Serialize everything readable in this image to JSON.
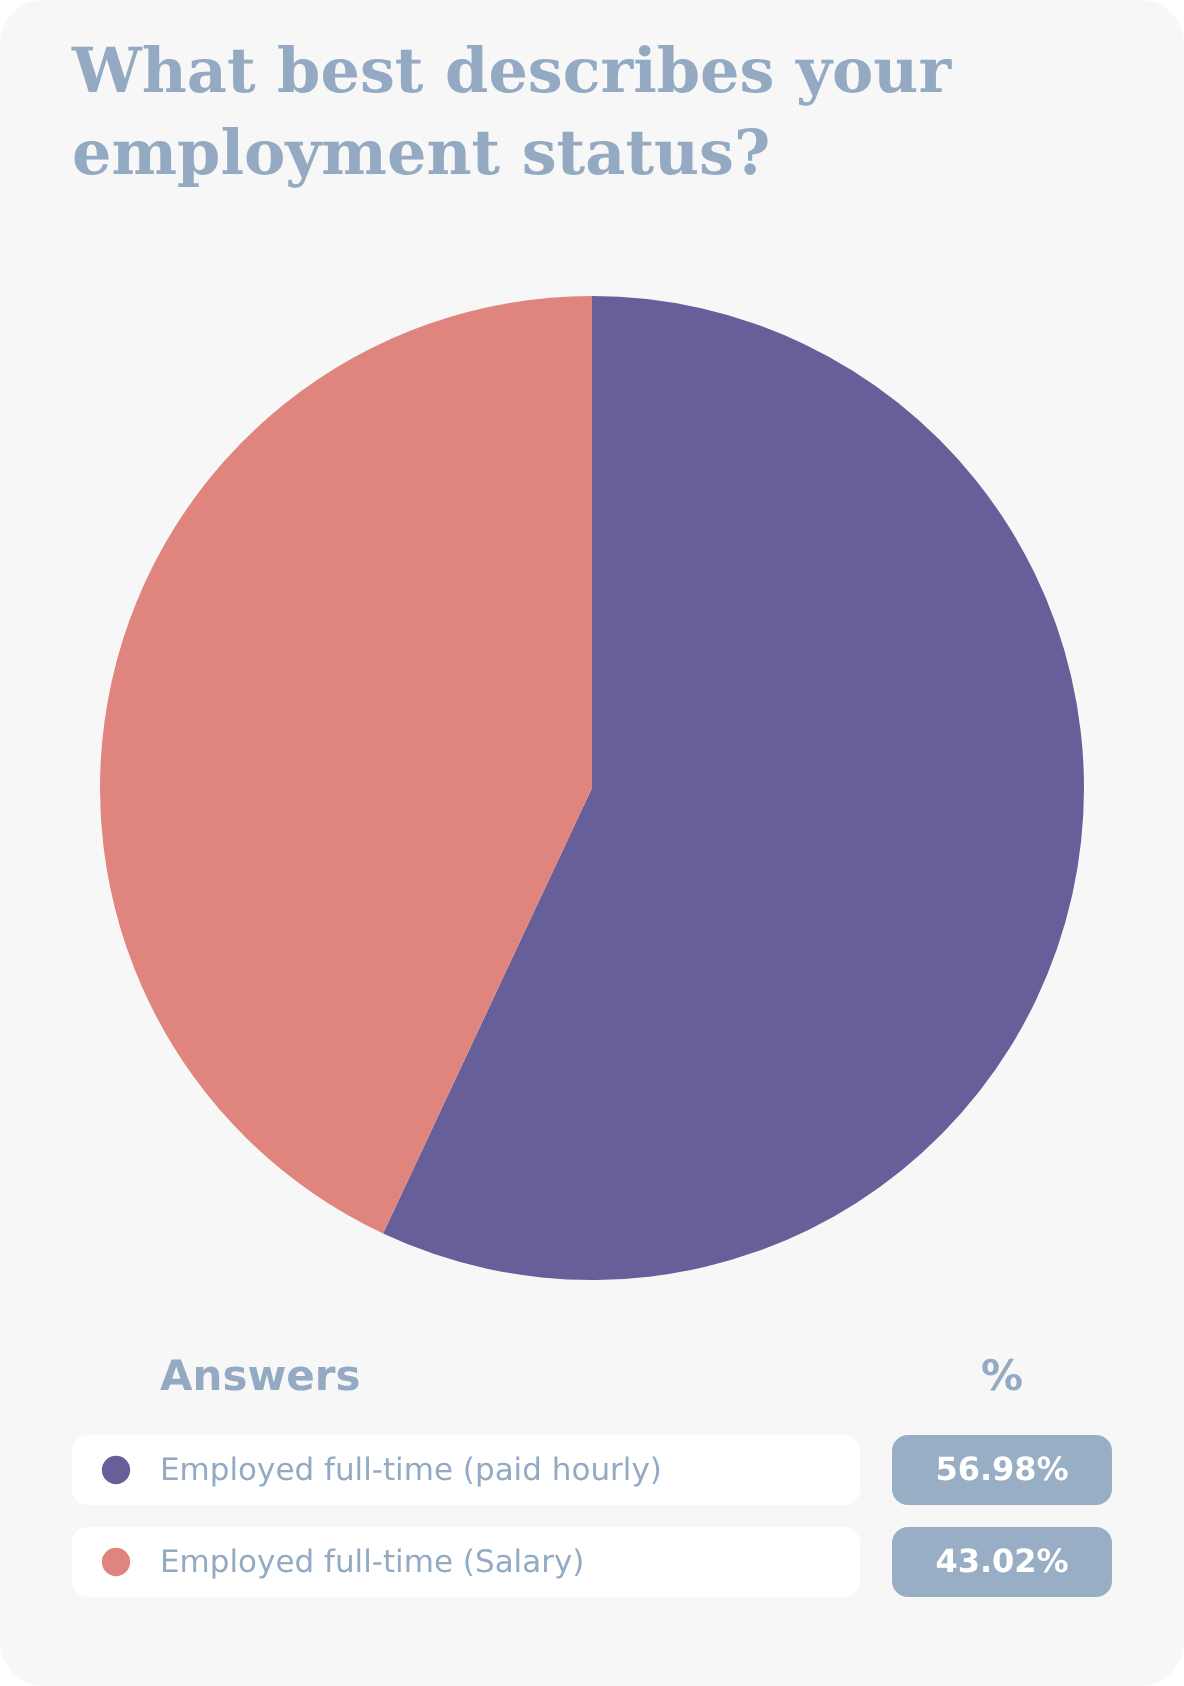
{
  "chart_data": {
    "type": "pie",
    "title": "What best describes your employment status?",
    "categories": [
      "Employed full-time (paid hourly)",
      "Employed full-time (Salary)"
    ],
    "values": [
      56.98,
      43.02
    ],
    "colors": [
      "#665f99",
      "#e0847e"
    ],
    "value_labels": [
      "56.98%",
      "43.02%"
    ],
    "legend": "bottom",
    "legend_title": "Answers",
    "annotations": [
      "%"
    ]
  }
}
